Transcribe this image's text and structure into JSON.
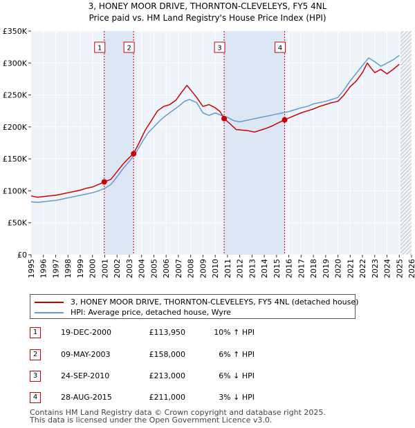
{
  "chart_data": {
    "type": "line",
    "title": "3, HONEY MOOR DRIVE, THORNTON-CLEVELEYS, FY5 4NL",
    "subtitle": "Price paid vs. HM Land Registry's House Price Index (HPI)",
    "xlabel": "",
    "ylabel": "",
    "xlim": [
      1995,
      2026
    ],
    "ylim": [
      0,
      350000
    ],
    "x_ticks": [
      "1995",
      "1996",
      "1997",
      "1998",
      "1999",
      "2000",
      "2001",
      "2002",
      "2003",
      "2004",
      "2005",
      "2006",
      "2007",
      "2008",
      "2009",
      "2010",
      "2011",
      "2012",
      "2013",
      "2014",
      "2015",
      "2016",
      "2017",
      "2018",
      "2019",
      "2020",
      "2021",
      "2022",
      "2023",
      "2024",
      "2025",
      "2026"
    ],
    "y_ticks": [
      {
        "value": 0,
        "label": "£0"
      },
      {
        "value": 50000,
        "label": "£50K"
      },
      {
        "value": 100000,
        "label": "£100K"
      },
      {
        "value": 150000,
        "label": "£150K"
      },
      {
        "value": 200000,
        "label": "£200K"
      },
      {
        "value": 250000,
        "label": "£250K"
      },
      {
        "value": 300000,
        "label": "£300K"
      },
      {
        "value": 350000,
        "label": "£350K"
      }
    ],
    "grid": true,
    "legend_position": "below",
    "series": [
      {
        "name": "3, HONEY MOOR DRIVE, THORNTON-CLEVELEYS, FY5 4NL (detached house)",
        "color": "#cc0000",
        "x": [
          1995.0,
          1995.5,
          1996.0,
          1996.5,
          1997.0,
          1997.5,
          1998.0,
          1998.5,
          1999.0,
          1999.5,
          2000.0,
          2000.5,
          2000.96,
          2001.5,
          2002.0,
          2002.5,
          2003.0,
          2003.35,
          2003.8,
          2004.3,
          2004.8,
          2005.3,
          2005.8,
          2006.3,
          2006.8,
          2007.3,
          2007.7,
          2008.0,
          2008.5,
          2009.0,
          2009.5,
          2010.0,
          2010.4,
          2010.73,
          2011.2,
          2011.7,
          2012.2,
          2012.7,
          2013.2,
          2013.7,
          2014.2,
          2014.7,
          2015.0,
          2015.66,
          2016.0,
          2016.5,
          2017.0,
          2017.5,
          2018.0,
          2018.5,
          2019.0,
          2019.5,
          2020.0,
          2020.5,
          2021.0,
          2021.5,
          2022.0,
          2022.4,
          2022.7,
          2023.0,
          2023.5,
          2024.0,
          2024.5,
          2025.0
        ],
        "values": [
          92000,
          90000,
          91000,
          92000,
          93000,
          95000,
          97000,
          99000,
          101000,
          104000,
          106000,
          110000,
          113950,
          118000,
          130000,
          142000,
          152000,
          158000,
          175000,
          195000,
          210000,
          225000,
          232000,
          235000,
          242000,
          255000,
          265000,
          258000,
          246000,
          232000,
          235000,
          230000,
          224000,
          213000,
          205000,
          196000,
          195000,
          194000,
          192000,
          195000,
          198000,
          202000,
          205000,
          211000,
          214000,
          218000,
          222000,
          225000,
          228000,
          232000,
          235000,
          238000,
          240000,
          250000,
          263000,
          272000,
          285000,
          300000,
          292000,
          285000,
          290000,
          283000,
          290000,
          298000
        ]
      },
      {
        "name": "HPI: Average price, detached house, Wyre",
        "color": "#6699cc",
        "x": [
          1995.0,
          1995.5,
          1996.0,
          1996.5,
          1997.0,
          1997.5,
          1998.0,
          1998.5,
          1999.0,
          1999.5,
          2000.0,
          2000.5,
          2001.0,
          2001.5,
          2002.0,
          2002.5,
          2003.0,
          2003.5,
          2004.0,
          2004.5,
          2005.0,
          2005.5,
          2006.0,
          2006.5,
          2007.0,
          2007.5,
          2007.9,
          2008.5,
          2009.0,
          2009.5,
          2010.0,
          2010.5,
          2011.0,
          2011.5,
          2012.0,
          2012.5,
          2013.0,
          2013.5,
          2014.0,
          2014.5,
          2015.0,
          2015.5,
          2016.0,
          2016.5,
          2017.0,
          2017.5,
          2018.0,
          2018.5,
          2019.0,
          2019.5,
          2020.0,
          2020.5,
          2021.0,
          2021.5,
          2022.0,
          2022.5,
          2023.0,
          2023.5,
          2024.0,
          2024.5,
          2025.0
        ],
        "values": [
          83000,
          82000,
          83000,
          84000,
          85000,
          87000,
          89000,
          91000,
          93000,
          95000,
          97000,
          100000,
          104000,
          110000,
          122000,
          135000,
          146000,
          158000,
          175000,
          190000,
          200000,
          210000,
          218000,
          225000,
          232000,
          240000,
          243000,
          238000,
          222000,
          218000,
          222000,
          218000,
          215000,
          210000,
          208000,
          210000,
          212000,
          214000,
          216000,
          218000,
          220000,
          222000,
          224000,
          227000,
          230000,
          232000,
          236000,
          238000,
          240000,
          243000,
          246000,
          258000,
          272000,
          284000,
          296000,
          308000,
          302000,
          295000,
          300000,
          305000,
          312000
        ]
      }
    ],
    "transactions": [
      {
        "label": "1",
        "x": 2000.96,
        "value": 113950
      },
      {
        "label": "2",
        "x": 2003.35,
        "value": 158000
      },
      {
        "label": "3",
        "x": 2010.73,
        "value": 213000
      },
      {
        "label": "4",
        "x": 2015.66,
        "value": 211000
      }
    ],
    "shaded_ranges": [
      [
        2000.96,
        2003.35
      ],
      [
        2010.73,
        2015.66
      ]
    ],
    "hatched_from": 2025.1
  },
  "legend": {
    "items": [
      {
        "label": "3, HONEY MOOR DRIVE, THORNTON-CLEVELEYS, FY5 4NL (detached house)",
        "color": "#cc0000"
      },
      {
        "label": "HPI: Average price, detached house, Wyre",
        "color": "#6699cc"
      }
    ]
  },
  "table": {
    "rows": [
      {
        "num": "1",
        "date": "19-DEC-2000",
        "price": "£113,950",
        "hpi": "10% ↑ HPI"
      },
      {
        "num": "2",
        "date": "09-MAY-2003",
        "price": "£158,000",
        "hpi": "6% ↑ HPI"
      },
      {
        "num": "3",
        "date": "24-SEP-2010",
        "price": "£213,000",
        "hpi": "6% ↓ HPI"
      },
      {
        "num": "4",
        "date": "28-AUG-2015",
        "price": "£211,000",
        "hpi": "3% ↓ HPI"
      }
    ]
  },
  "footer": {
    "line1": "Contains HM Land Registry data © Crown copyright and database right 2025.",
    "line2": "This data is licensed under the Open Government Licence v3.0."
  }
}
